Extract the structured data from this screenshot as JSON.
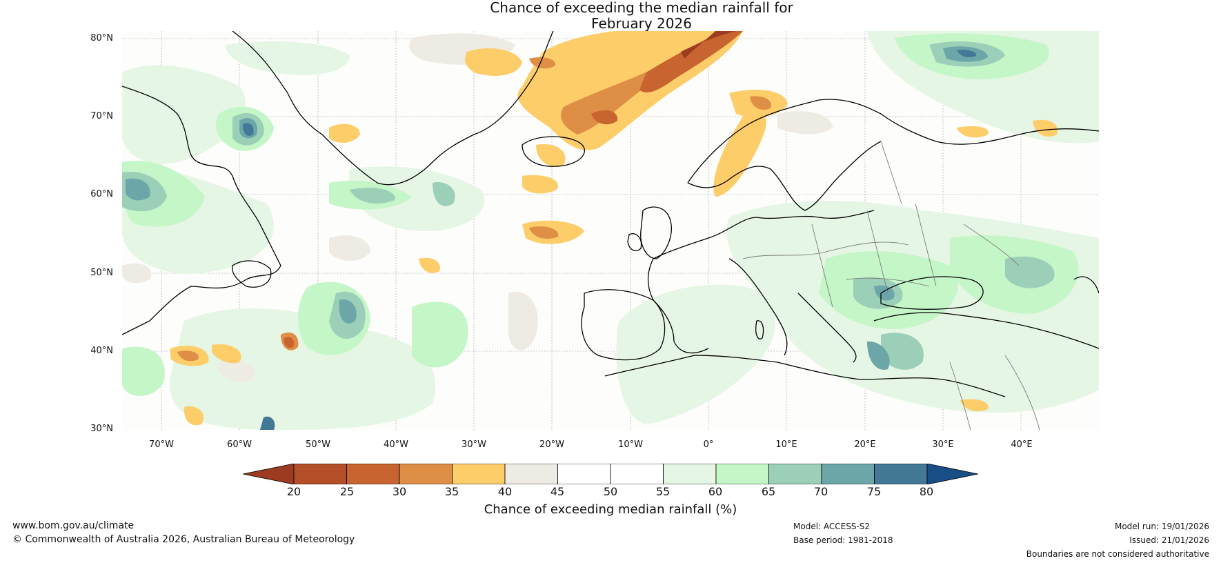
{
  "title": {
    "line1": "Chance of exceeding the median rainfall for",
    "line2": "February 2026"
  },
  "map": {
    "region": "North Atlantic and Europe",
    "lat_labels": [
      "80°N",
      "70°N",
      "60°N",
      "50°N",
      "40°N",
      "30°N"
    ],
    "lon_labels": [
      "70°W",
      "60°W",
      "50°W",
      "40°W",
      "30°W",
      "20°W",
      "10°W",
      "0°",
      "10°E",
      "20°E",
      "30°E",
      "40°E"
    ]
  },
  "colorbar": {
    "label": "Chance of exceeding median rainfall (%)",
    "ticks": [
      "20",
      "25",
      "30",
      "35",
      "40",
      "45",
      "50",
      "55",
      "60",
      "65",
      "70",
      "75",
      "80"
    ],
    "colors": [
      "#9c3b20",
      "#b24e28",
      "#c7642f",
      "#de8f45",
      "#fdcd6a",
      "#eeebe4",
      "#ffffff",
      "#ffffff",
      "#e6f6e4",
      "#c5f6c8",
      "#9bcfb8",
      "#6ca6a8",
      "#437897",
      "#1a4e86"
    ]
  },
  "footer": {
    "website": "www.bom.gov.au/climate",
    "copyright": "© Commonwealth of Australia 2026, Australian Bureau of Meteorology",
    "model": "Model: ACCESS-S2",
    "base_period": "Base period: 1981-2018",
    "model_run": "Model run: 19/01/2026",
    "issued": "Issued: 21/01/2026",
    "disclaimer": "Boundaries are not considered authoritative"
  }
}
